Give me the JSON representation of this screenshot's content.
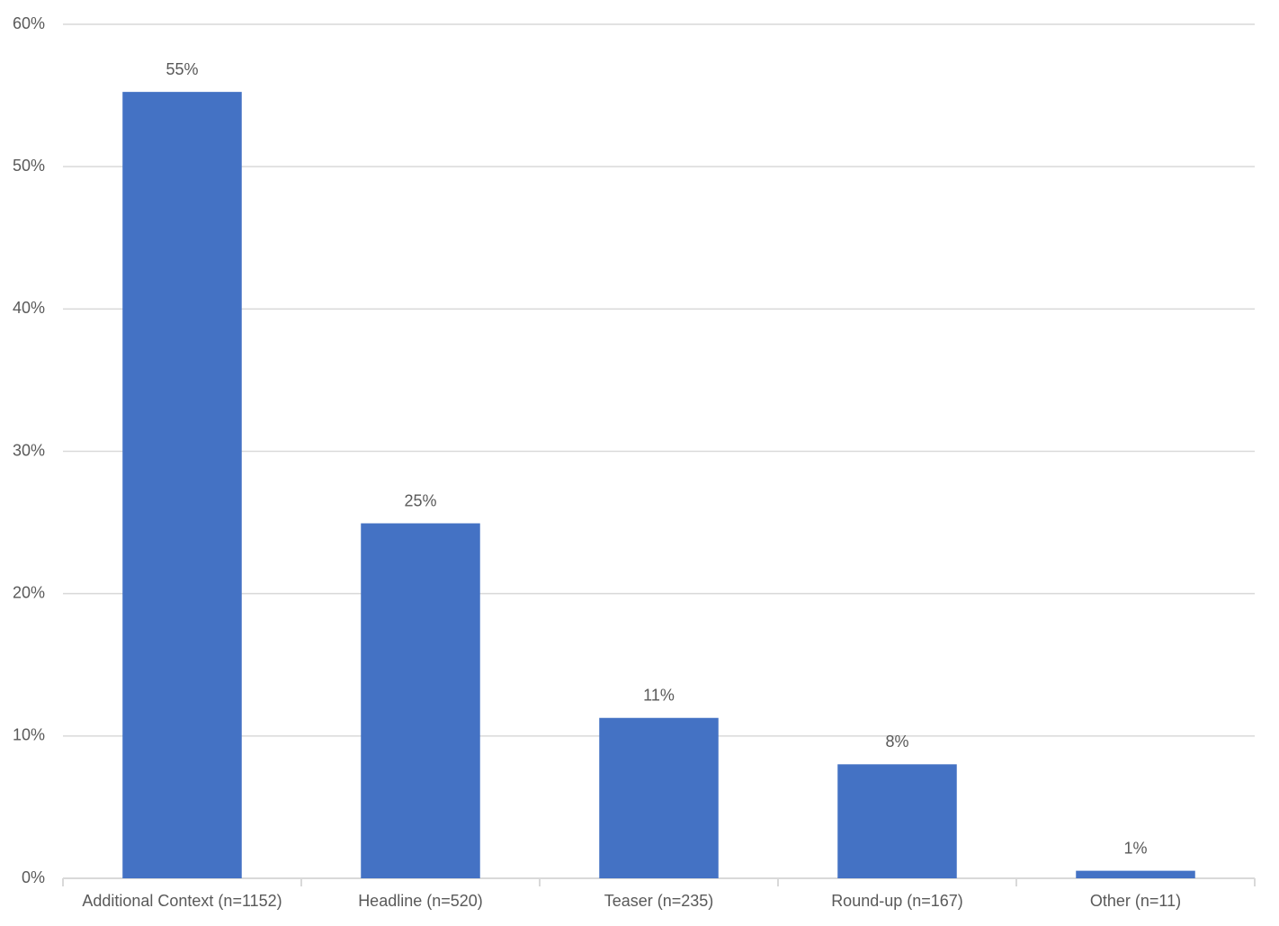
{
  "chart_data": {
    "type": "bar",
    "categories": [
      "Additional Context (n=1152)",
      "Headline (n=520)",
      "Teaser (n=235)",
      "Round-up (n=167)",
      "Other (n=11)"
    ],
    "values": [
      55.25,
      24.94,
      11.27,
      8.01,
      0.53
    ],
    "value_labels": [
      "55%",
      "25%",
      "11%",
      "8%",
      "1%"
    ],
    "color": "#4472c4",
    "ylim": [
      0,
      60
    ],
    "yticks": [
      {
        "value": 0,
        "label": "0%"
      },
      {
        "value": 10,
        "label": "10%"
      },
      {
        "value": 20,
        "label": "20%"
      },
      {
        "value": 30,
        "label": "30%"
      },
      {
        "value": 40,
        "label": "40%"
      },
      {
        "value": 50,
        "label": "50%"
      },
      {
        "value": 60,
        "label": "60%"
      }
    ],
    "grid": true
  }
}
